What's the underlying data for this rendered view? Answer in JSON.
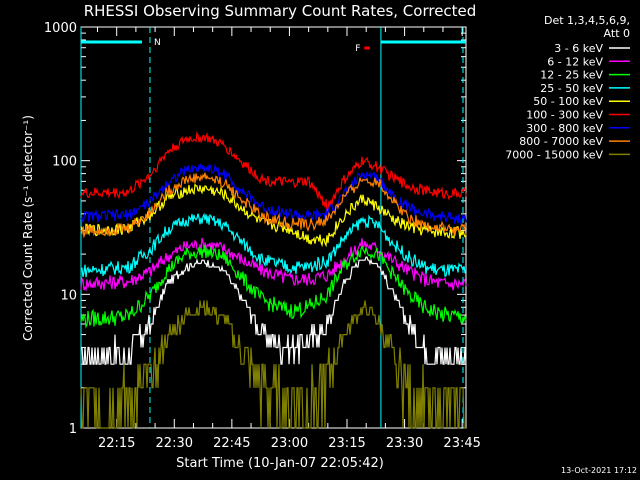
{
  "chart_data": {
    "type": "line",
    "title": "RHESSI Observing Summary Count Rates, Corrected",
    "xlabel": "Start Time (10-Jan-07 22:05:42)",
    "ylabel": "Corrected Count Rate (s⁻¹ detector⁻¹)",
    "y_scale": "log",
    "ylim": [
      1,
      1000
    ],
    "xlim": [
      "22:05:42",
      "23:46:00"
    ],
    "x_ticks": [
      "22:15",
      "22:30",
      "22:45",
      "23:00",
      "23:15",
      "23:30",
      "23:45"
    ],
    "y_ticks": [
      "1",
      "10",
      "100",
      "1000"
    ],
    "legend_header": [
      "Det 1,3,4,5,6,9,",
      "Att 0"
    ],
    "legend_placement": "right",
    "footer": "13-Oct-2021 17:12",
    "grid": false,
    "markers": {
      "vertical_lines": [
        "22:23:40",
        "23:23:50"
      ],
      "night": {
        "label": "N",
        "start": "22:05:42",
        "end": "22:23:40",
        "color": "#00ffff"
      },
      "flare": {
        "label": "F",
        "start": "23:19:30",
        "end": "23:21:00",
        "color": "#ff0000"
      },
      "day_bar": {
        "start": "23:23:50",
        "end": "23:46:00",
        "color": "#00ffff"
      }
    },
    "series": [
      {
        "name": "3 - 6 keV",
        "color": "#ffffff",
        "x": [
          "22:05:42",
          "22:18",
          "22:24",
          "22:28",
          "22:33",
          "22:38",
          "22:43",
          "22:48",
          "22:53",
          "23:00",
          "23:05",
          "23:10",
          "23:14",
          "23:19",
          "23:23",
          "23:27",
          "23:31",
          "23:35",
          "23:40",
          "23:44"
        ],
        "values": [
          3.5,
          3.6,
          6,
          12,
          16,
          17.5,
          15,
          9,
          5,
          4,
          4.5,
          6,
          12,
          19,
          17,
          10,
          6,
          4,
          3.5,
          3.5
        ]
      },
      {
        "name": "6 - 12 keV",
        "color": "#ff00ff",
        "x": [
          "22:05:42",
          "22:18",
          "22:24",
          "22:28",
          "22:33",
          "22:38",
          "22:43",
          "22:48",
          "22:53",
          "23:00",
          "23:05",
          "23:10",
          "23:14",
          "23:19",
          "23:23",
          "23:27",
          "23:31",
          "23:35",
          "23:40",
          "23:44"
        ],
        "values": [
          12,
          12.5,
          15,
          19,
          23,
          24,
          22,
          18,
          15,
          13,
          13,
          14,
          18,
          24,
          22,
          18,
          15,
          13,
          12,
          12
        ]
      },
      {
        "name": "12 - 25 keV",
        "color": "#00ff00",
        "x": [
          "22:05:42",
          "22:18",
          "22:24",
          "22:28",
          "22:33",
          "22:38",
          "22:43",
          "22:48",
          "22:53",
          "23:00",
          "23:05",
          "23:10",
          "23:14",
          "23:19",
          "23:23",
          "23:27",
          "23:31",
          "23:35",
          "23:40",
          "23:44"
        ],
        "values": [
          6.5,
          6.8,
          10,
          15,
          20,
          21,
          19,
          13,
          9,
          7.5,
          8,
          10,
          16,
          22,
          20,
          14,
          10,
          8,
          7,
          6.8
        ]
      },
      {
        "name": "25 - 50 keV",
        "color": "#00ffff",
        "x": [
          "22:05:42",
          "22:18",
          "22:24",
          "22:28",
          "22:33",
          "22:38",
          "22:43",
          "22:48",
          "22:53",
          "23:00",
          "23:05",
          "23:10",
          "23:14",
          "23:19",
          "23:23",
          "23:27",
          "23:31",
          "23:35",
          "23:40",
          "23:44"
        ],
        "values": [
          15,
          16,
          22,
          30,
          36,
          37,
          33,
          24,
          18,
          16,
          16,
          18,
          26,
          36,
          33,
          24,
          19,
          16,
          15,
          15
        ]
      },
      {
        "name": "50 - 100 keV",
        "color": "#ffff00",
        "x": [
          "22:05:42",
          "22:18",
          "22:24",
          "22:28",
          "22:33",
          "22:38",
          "22:43",
          "22:48",
          "22:53",
          "23:00",
          "23:05",
          "23:10",
          "23:14",
          "23:19",
          "23:23",
          "23:27",
          "23:31",
          "23:35",
          "23:40",
          "23:44"
        ],
        "values": [
          30,
          31,
          40,
          52,
          60,
          62,
          56,
          43,
          34,
          31,
          26,
          26,
          38,
          52,
          45,
          36,
          32,
          30,
          29,
          29
        ]
      },
      {
        "name": "100 - 300 keV",
        "color": "#ff0000",
        "x": [
          "22:05:42",
          "22:18",
          "22:24",
          "22:28",
          "22:33",
          "22:38",
          "22:43",
          "22:48",
          "22:53",
          "23:00",
          "23:05",
          "23:10",
          "23:14",
          "23:19",
          "23:23",
          "23:27",
          "23:31",
          "23:35",
          "23:40",
          "23:44"
        ],
        "values": [
          57,
          58,
          80,
          115,
          145,
          150,
          130,
          95,
          72,
          68,
          70,
          45,
          70,
          100,
          90,
          75,
          65,
          60,
          57,
          57
        ]
      },
      {
        "name": "300 - 800 keV",
        "color": "#0000ff",
        "x": [
          "22:05:42",
          "22:18",
          "22:24",
          "22:28",
          "22:33",
          "22:38",
          "22:43",
          "22:48",
          "22:53",
          "23:00",
          "23:05",
          "23:10",
          "23:14",
          "23:19",
          "23:23",
          "23:27",
          "23:31",
          "23:35",
          "23:40",
          "23:44"
        ],
        "values": [
          38,
          39,
          50,
          68,
          85,
          90,
          80,
          58,
          45,
          40,
          38,
          40,
          55,
          80,
          75,
          55,
          45,
          40,
          38,
          37
        ]
      },
      {
        "name": "800 - 7000 keV",
        "color": "#ff8000",
        "x": [
          "22:05:42",
          "22:18",
          "22:24",
          "22:28",
          "22:33",
          "22:38",
          "22:43",
          "22:48",
          "22:53",
          "23:00",
          "23:05",
          "23:10",
          "23:14",
          "23:19",
          "23:23",
          "23:27",
          "23:31",
          "23:35",
          "23:40",
          "23:44"
        ],
        "values": [
          30,
          31,
          42,
          58,
          72,
          76,
          68,
          50,
          38,
          34,
          33,
          36,
          52,
          72,
          70,
          50,
          38,
          33,
          31,
          30
        ]
      },
      {
        "name": "7000 - 15000 keV",
        "color": "#808000",
        "x": [
          "22:05:42",
          "22:18",
          "22:24",
          "22:28",
          "22:33",
          "22:38",
          "22:43",
          "22:48",
          "22:53",
          "23:00",
          "23:05",
          "23:10",
          "23:14",
          "23:19",
          "23:23",
          "23:27",
          "23:31",
          "23:35",
          "23:40",
          "23:44"
        ],
        "values": [
          1.5,
          1.6,
          2.5,
          4.5,
          7,
          8,
          6.5,
          3.5,
          2,
          1.5,
          1.5,
          2.5,
          5,
          8,
          6.5,
          3.5,
          2,
          1.5,
          1.5,
          1.5
        ]
      }
    ]
  }
}
